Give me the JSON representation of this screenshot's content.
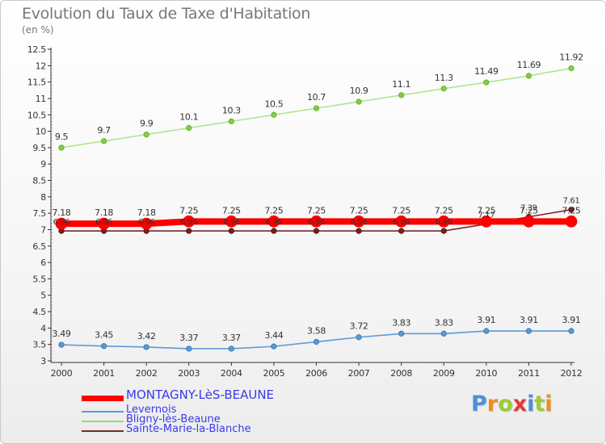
{
  "chart_data": {
    "type": "line",
    "title": "Evolution du Taux de Taxe d'Habitation",
    "subtitle": "(en %)",
    "x": [
      "2000",
      "2001",
      "2002",
      "2003",
      "2004",
      "2005",
      "2006",
      "2007",
      "2008",
      "2009",
      "2010",
      "2011",
      "2012"
    ],
    "ylim": [
      3,
      12.5
    ],
    "yticks": [
      "3",
      "3.5",
      "4",
      "4.5",
      "5",
      "5.5",
      "6",
      "6.5",
      "7",
      "7.5",
      "8",
      "8.5",
      "9",
      "9.5",
      "10",
      "10.5",
      "11",
      "11.5",
      "12",
      "12.5"
    ],
    "grid": false,
    "series": [
      {
        "name": "MONTAGNY-LèS-BEAUNE",
        "color": "#ff0000",
        "values": [
          7.18,
          7.18,
          7.18,
          7.25,
          7.25,
          7.25,
          7.25,
          7.25,
          7.25,
          7.25,
          7.25,
          7.25,
          7.25
        ],
        "labels": [
          "7.18",
          "7.18",
          "7.18",
          "7.25",
          "7.25",
          "7.25",
          "7.25",
          "7.25",
          "7.25",
          "7.25",
          "7.25",
          "7.25",
          "7.25"
        ]
      },
      {
        "name": "Levernois",
        "color": "#5b9bd5",
        "values": [
          3.49,
          3.45,
          3.42,
          3.37,
          3.37,
          3.44,
          3.58,
          3.72,
          3.83,
          3.83,
          3.91,
          3.91,
          3.91
        ],
        "labels": [
          "3.49",
          "3.45",
          "3.42",
          "3.37",
          "3.37",
          "3.44",
          "3.58",
          "3.72",
          "3.83",
          "3.83",
          "3.91",
          "3.91",
          "3.91"
        ]
      },
      {
        "name": "Bligny-lès-Beaune",
        "color": "#99dd66",
        "values": [
          9.5,
          9.7,
          9.9,
          10.1,
          10.3,
          10.5,
          10.7,
          10.9,
          11.1,
          11.3,
          11.49,
          11.69,
          11.92
        ],
        "labels": [
          "9.5",
          "9.7",
          "9.9",
          "10.1",
          "10.3",
          "10.5",
          "10.7",
          "10.9",
          "11.1",
          "11.3",
          "11.49",
          "11.69",
          "11.92"
        ]
      },
      {
        "name": "Sainte-Marie-la-Blanche",
        "color": "#7a2a2a",
        "values": [
          6.96,
          6.96,
          6.96,
          6.96,
          6.96,
          6.96,
          6.96,
          6.96,
          6.96,
          6.96,
          7.17,
          7.39,
          7.61
        ],
        "labels": [
          "6.96",
          "6.96",
          "6.96",
          "6.96",
          "6.96",
          "6.96",
          "6.96",
          "6.96",
          "6.96",
          "6.96",
          "7.17",
          "7.39",
          "7.61"
        ]
      }
    ]
  },
  "logo": {
    "letters": [
      "P",
      "r",
      "o",
      "x",
      "i",
      "t",
      "i"
    ],
    "colors": [
      "#4f8fd9",
      "#f08c1c",
      "#9acd32",
      "#e03a3a",
      "#4f8fd9",
      "#9acd32",
      "#f08c1c"
    ]
  }
}
